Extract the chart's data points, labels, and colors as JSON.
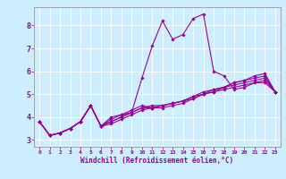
{
  "xlabel": "Windchill (Refroidissement éolien,°C)",
  "bg_color": "#cceeff",
  "line_color": "#990099",
  "grid_color": "#ffffff",
  "xlim": [
    -0.5,
    23.5
  ],
  "ylim": [
    2.7,
    8.8
  ],
  "xticks": [
    0,
    1,
    2,
    3,
    4,
    5,
    6,
    7,
    8,
    9,
    10,
    11,
    12,
    13,
    14,
    15,
    16,
    17,
    18,
    19,
    20,
    21,
    22,
    23
  ],
  "yticks": [
    3,
    4,
    5,
    6,
    7,
    8
  ],
  "series": [
    [
      3.8,
      3.2,
      3.3,
      3.5,
      3.8,
      4.5,
      3.6,
      4.0,
      4.1,
      4.2,
      5.7,
      7.1,
      8.2,
      7.4,
      7.6,
      8.3,
      8.5,
      6.0,
      5.8,
      5.2,
      5.3,
      5.5,
      5.5,
      5.1
    ],
    [
      3.8,
      3.2,
      3.3,
      3.5,
      3.8,
      4.5,
      3.6,
      3.9,
      4.1,
      4.3,
      4.5,
      4.4,
      4.4,
      4.5,
      4.6,
      4.8,
      5.0,
      5.1,
      5.3,
      5.5,
      5.6,
      5.8,
      5.9,
      5.1
    ],
    [
      3.8,
      3.2,
      3.3,
      3.5,
      3.8,
      4.5,
      3.6,
      3.8,
      4.0,
      4.2,
      4.4,
      4.4,
      4.5,
      4.6,
      4.7,
      4.9,
      5.1,
      5.2,
      5.3,
      5.5,
      5.6,
      5.7,
      5.8,
      5.1
    ],
    [
      3.8,
      3.2,
      3.3,
      3.5,
      3.8,
      4.5,
      3.6,
      3.8,
      4.0,
      4.2,
      4.4,
      4.5,
      4.5,
      4.6,
      4.7,
      4.9,
      5.0,
      5.2,
      5.3,
      5.4,
      5.5,
      5.6,
      5.7,
      5.1
    ],
    [
      3.8,
      3.2,
      3.3,
      3.5,
      3.8,
      4.5,
      3.6,
      3.7,
      3.9,
      4.1,
      4.3,
      4.4,
      4.5,
      4.6,
      4.7,
      4.8,
      5.0,
      5.1,
      5.2,
      5.3,
      5.4,
      5.5,
      5.6,
      5.1
    ]
  ]
}
